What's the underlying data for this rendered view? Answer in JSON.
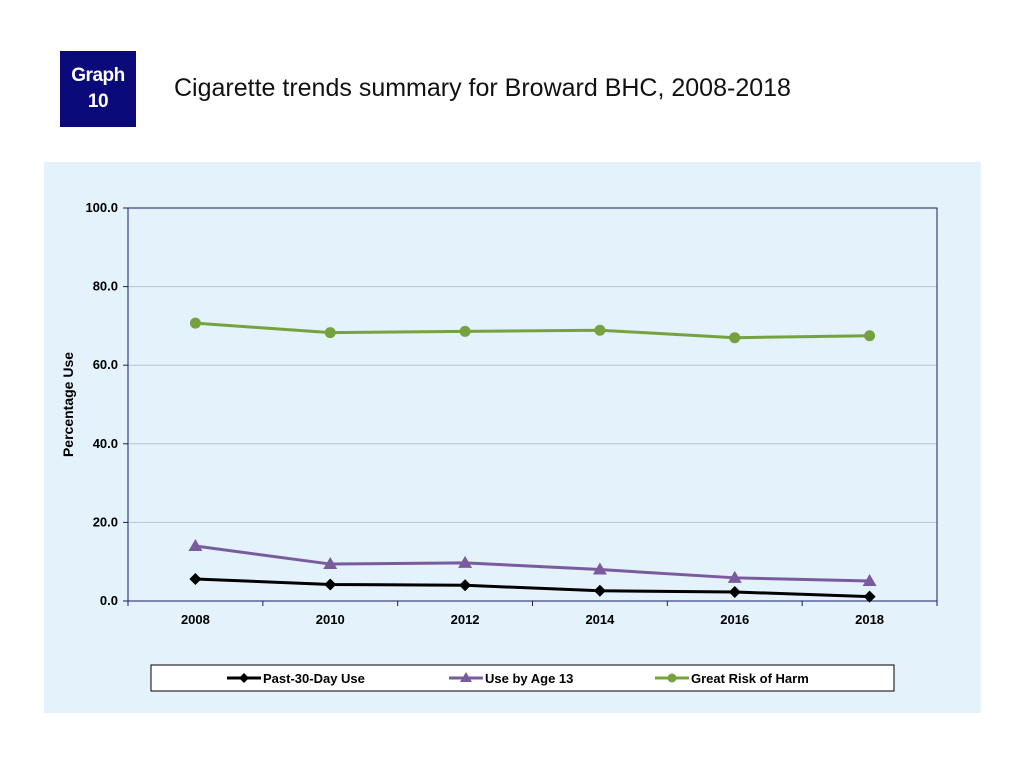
{
  "badge": {
    "line1": "Graph",
    "line2": "10"
  },
  "title": "Cigarette trends summary for Broward BHC, 2008-2018",
  "chart_data": {
    "type": "line",
    "x": [
      "2008",
      "2010",
      "2012",
      "2014",
      "2016",
      "2018"
    ],
    "ylabel": "Percentage Use",
    "xlabel": "",
    "ylim": [
      0,
      100
    ],
    "yticks": [
      "0.0",
      "20.0",
      "40.0",
      "60.0",
      "80.0",
      "100.0"
    ],
    "grid": true,
    "legend": "bottom",
    "series": [
      {
        "name": "Past-30-Day Use",
        "values": [
          5.6,
          4.2,
          4.0,
          2.6,
          2.3,
          1.1
        ],
        "color": "#000000",
        "marker": "diamond"
      },
      {
        "name": "Use by Age 13",
        "values": [
          14.0,
          9.4,
          9.7,
          8.0,
          5.9,
          5.1
        ],
        "color": "#7a5c9e",
        "marker": "triangle"
      },
      {
        "name": "Great Risk of Harm",
        "values": [
          70.7,
          68.3,
          68.6,
          68.9,
          67.0,
          67.5
        ],
        "color": "#76a13f",
        "marker": "circle"
      }
    ]
  }
}
